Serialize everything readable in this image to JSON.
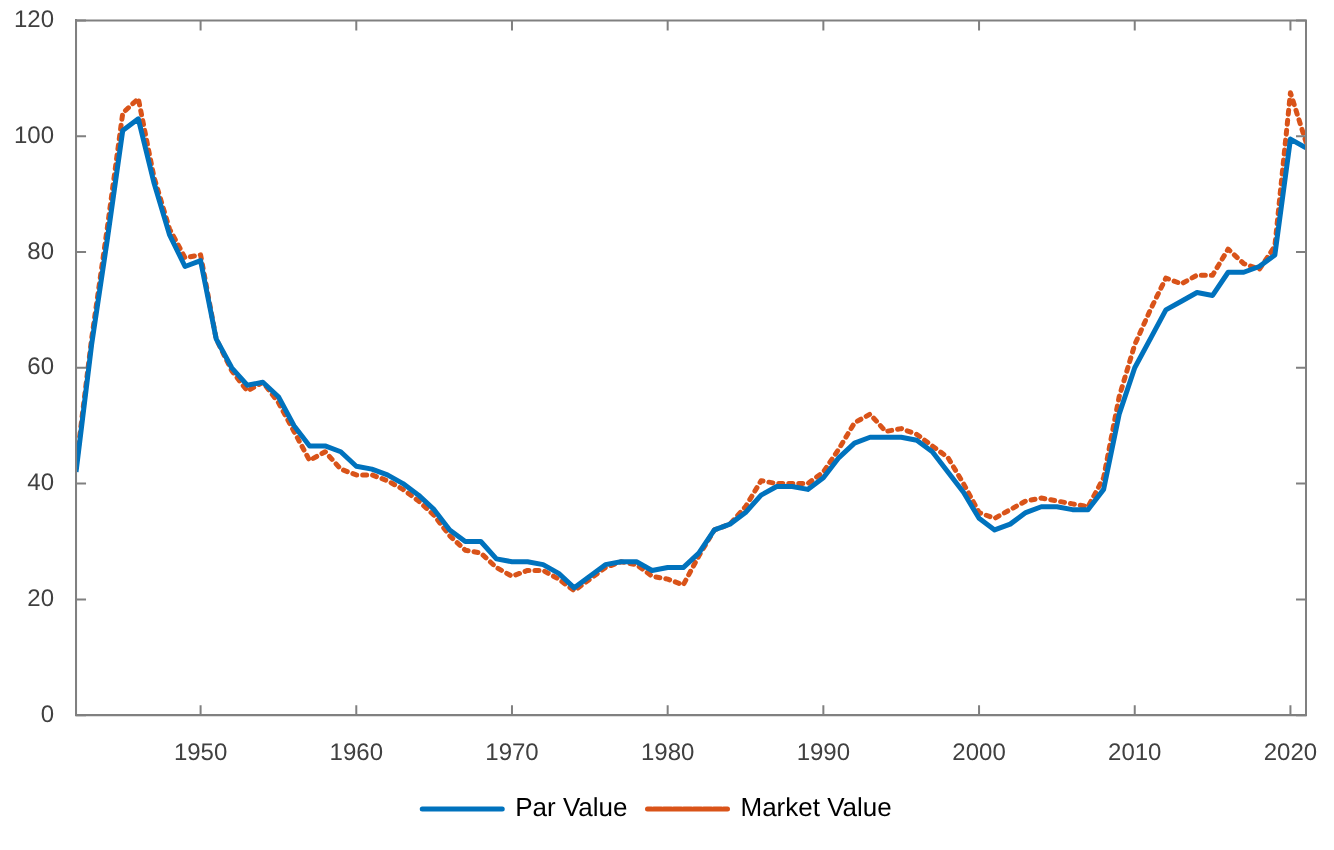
{
  "chart_data": {
    "type": "line",
    "x": [
      1942,
      1943,
      1944,
      1945,
      1946,
      1947,
      1948,
      1949,
      1950,
      1951,
      1952,
      1953,
      1954,
      1955,
      1956,
      1957,
      1958,
      1959,
      1960,
      1961,
      1962,
      1963,
      1964,
      1965,
      1966,
      1967,
      1968,
      1969,
      1970,
      1971,
      1972,
      1973,
      1974,
      1975,
      1976,
      1977,
      1978,
      1979,
      1980,
      1981,
      1982,
      1983,
      1984,
      1985,
      1986,
      1987,
      1988,
      1989,
      1990,
      1991,
      1992,
      1993,
      1994,
      1995,
      1996,
      1997,
      1998,
      1999,
      2000,
      2001,
      2002,
      2003,
      2004,
      2005,
      2006,
      2007,
      2008,
      2009,
      2010,
      2011,
      2012,
      2013,
      2014,
      2015,
      2016,
      2017,
      2018,
      2019,
      2020,
      2021
    ],
    "series": [
      {
        "name": "Par Value",
        "color": "#0072bd",
        "line_style": "solid",
        "values": [
          42,
          64,
          82,
          101,
          103,
          92,
          83,
          77.5,
          78.5,
          65,
          60,
          57,
          57.5,
          55,
          50,
          46.5,
          46.5,
          45.5,
          43,
          42.5,
          41.5,
          40,
          38,
          35.5,
          32,
          30,
          30,
          27,
          26.5,
          26.5,
          26,
          24.5,
          22,
          24,
          26,
          26.5,
          26.5,
          25,
          25.5,
          25.5,
          28,
          32,
          33,
          35,
          38,
          39.5,
          39.5,
          39,
          41,
          44.5,
          47,
          48,
          48,
          48,
          47.5,
          45.5,
          42,
          38.5,
          34,
          32,
          33,
          35,
          36,
          36,
          35.5,
          35.5,
          39,
          52,
          60,
          65,
          70,
          71.5,
          73,
          72.5,
          76.5,
          76.5,
          77.5,
          79.5,
          99.5,
          98
        ]
      },
      {
        "name": "Market Value",
        "color": "#d95319",
        "line_style": "dotted",
        "values": [
          43,
          65,
          84,
          104,
          106.5,
          93,
          84,
          79,
          79.5,
          65,
          59.5,
          56,
          57.5,
          54,
          49,
          44,
          45.5,
          42.5,
          41.5,
          41.5,
          40.5,
          39,
          37,
          34.5,
          31,
          28.5,
          28,
          25.5,
          24,
          25,
          25,
          23.5,
          21.5,
          23.5,
          25.5,
          26.5,
          26,
          24,
          23.5,
          22.5,
          27.5,
          32,
          33,
          36,
          40.5,
          40,
          40,
          40,
          42,
          46,
          50.5,
          52,
          49,
          49.5,
          48.5,
          46.5,
          44.5,
          40,
          35,
          34,
          35.5,
          37,
          37.5,
          37,
          36.5,
          36,
          41,
          55,
          64,
          70,
          75.5,
          74.5,
          76,
          76,
          80.5,
          78,
          77,
          81,
          107.5,
          99
        ]
      }
    ],
    "xlim": [
      1942,
      2021
    ],
    "xticks": [
      1950,
      1960,
      1970,
      1980,
      1990,
      2000,
      2010,
      2020
    ],
    "ylim": [
      0,
      120
    ],
    "yticks": [
      0,
      20,
      40,
      60,
      80,
      100,
      120
    ],
    "grid": false,
    "legend": "bottom",
    "marker": "none"
  }
}
